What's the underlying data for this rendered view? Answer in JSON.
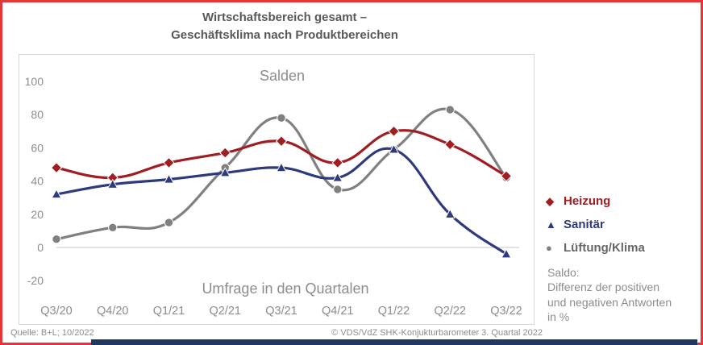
{
  "frame": {
    "border_color": "#e63538",
    "bottom_bar_color": "#1f3864"
  },
  "title": {
    "line1": "Wirtschaftsbereich gesamt –",
    "line2": "Geschäftsklima nach Produktbereichen"
  },
  "chart_data": {
    "type": "line",
    "title": "Salden",
    "xlabel": "Umfrage in den Quartalen",
    "ylabel": "",
    "categories": [
      "Q3/20",
      "Q4/20",
      "Q1/21",
      "Q2/21",
      "Q3/21",
      "Q4/21",
      "Q1/22",
      "Q2/22",
      "Q3/22"
    ],
    "yticks": [
      100,
      80,
      60,
      40,
      20,
      0,
      -20
    ],
    "ylim": [
      -30,
      112
    ],
    "grid": "zero-line-only",
    "legend_position": "right-outside",
    "line_style": "smooth",
    "series": [
      {
        "name": "Heizung",
        "marker": "diamond",
        "color": "#a01d21",
        "label_color": "#a01d21",
        "values": [
          48,
          42,
          51,
          57,
          64,
          51,
          70,
          62,
          43
        ]
      },
      {
        "name": "Sanitär",
        "marker": "triangle",
        "color": "#2e3a7c",
        "label_color": "#2e3a7c",
        "values": [
          32,
          38,
          41,
          45,
          48,
          42,
          59,
          20,
          -4
        ]
      },
      {
        "name": "Lüftung/Klima",
        "marker": "circle",
        "color": "#808080",
        "label_color": "#666666",
        "values": [
          5,
          12,
          15,
          48,
          78,
          35,
          59,
          83,
          42
        ]
      }
    ],
    "text_color": "#8c8c8c",
    "zero_line_color": "#d9d9d9"
  },
  "note": {
    "lines": [
      "Saldo:",
      "Differenz der positiven",
      "und negativen Antworten",
      "in %"
    ]
  },
  "footer": {
    "source": "Quelle: B+L; 10/2022",
    "copyright": "© VDS/VdZ SHK-Konjukturbarometer 3. Quartal 2022"
  }
}
